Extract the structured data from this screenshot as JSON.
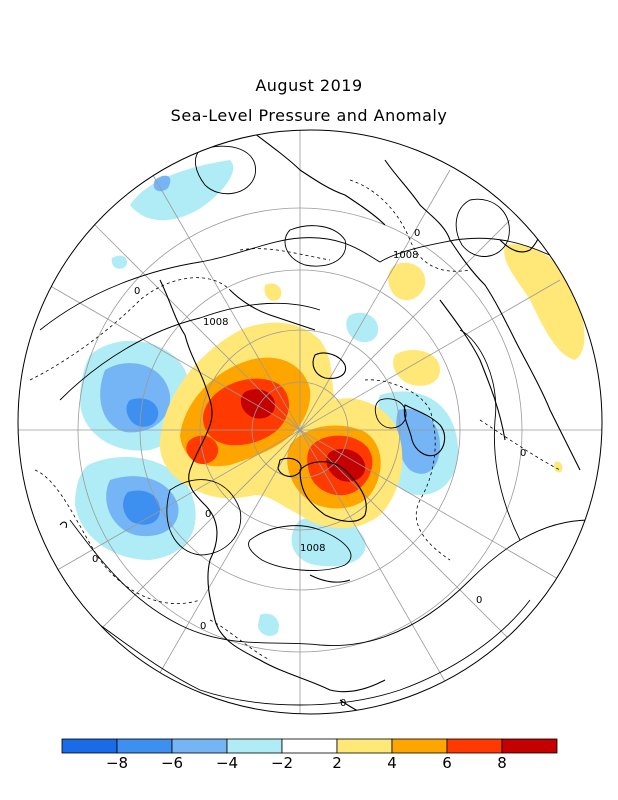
{
  "title": "August 2019",
  "subtitle": "Sea-Level Pressure and Anomaly",
  "contour_labels": [
    "1008",
    "1008",
    "1008",
    "0",
    "0",
    "0",
    "0",
    "0",
    "0",
    "0",
    "0"
  ],
  "colorbar": {
    "colors": [
      "#1a6be8",
      "#3d8ff0",
      "#76b5f5",
      "#b0ecf5",
      "#ffffff",
      "#ffe878",
      "#ffa500",
      "#ff3a00",
      "#c40000"
    ],
    "tick_labels": [
      "-8",
      "-6",
      "-4",
      "-2",
      "2",
      "4",
      "6",
      "8"
    ],
    "units": ""
  }
}
